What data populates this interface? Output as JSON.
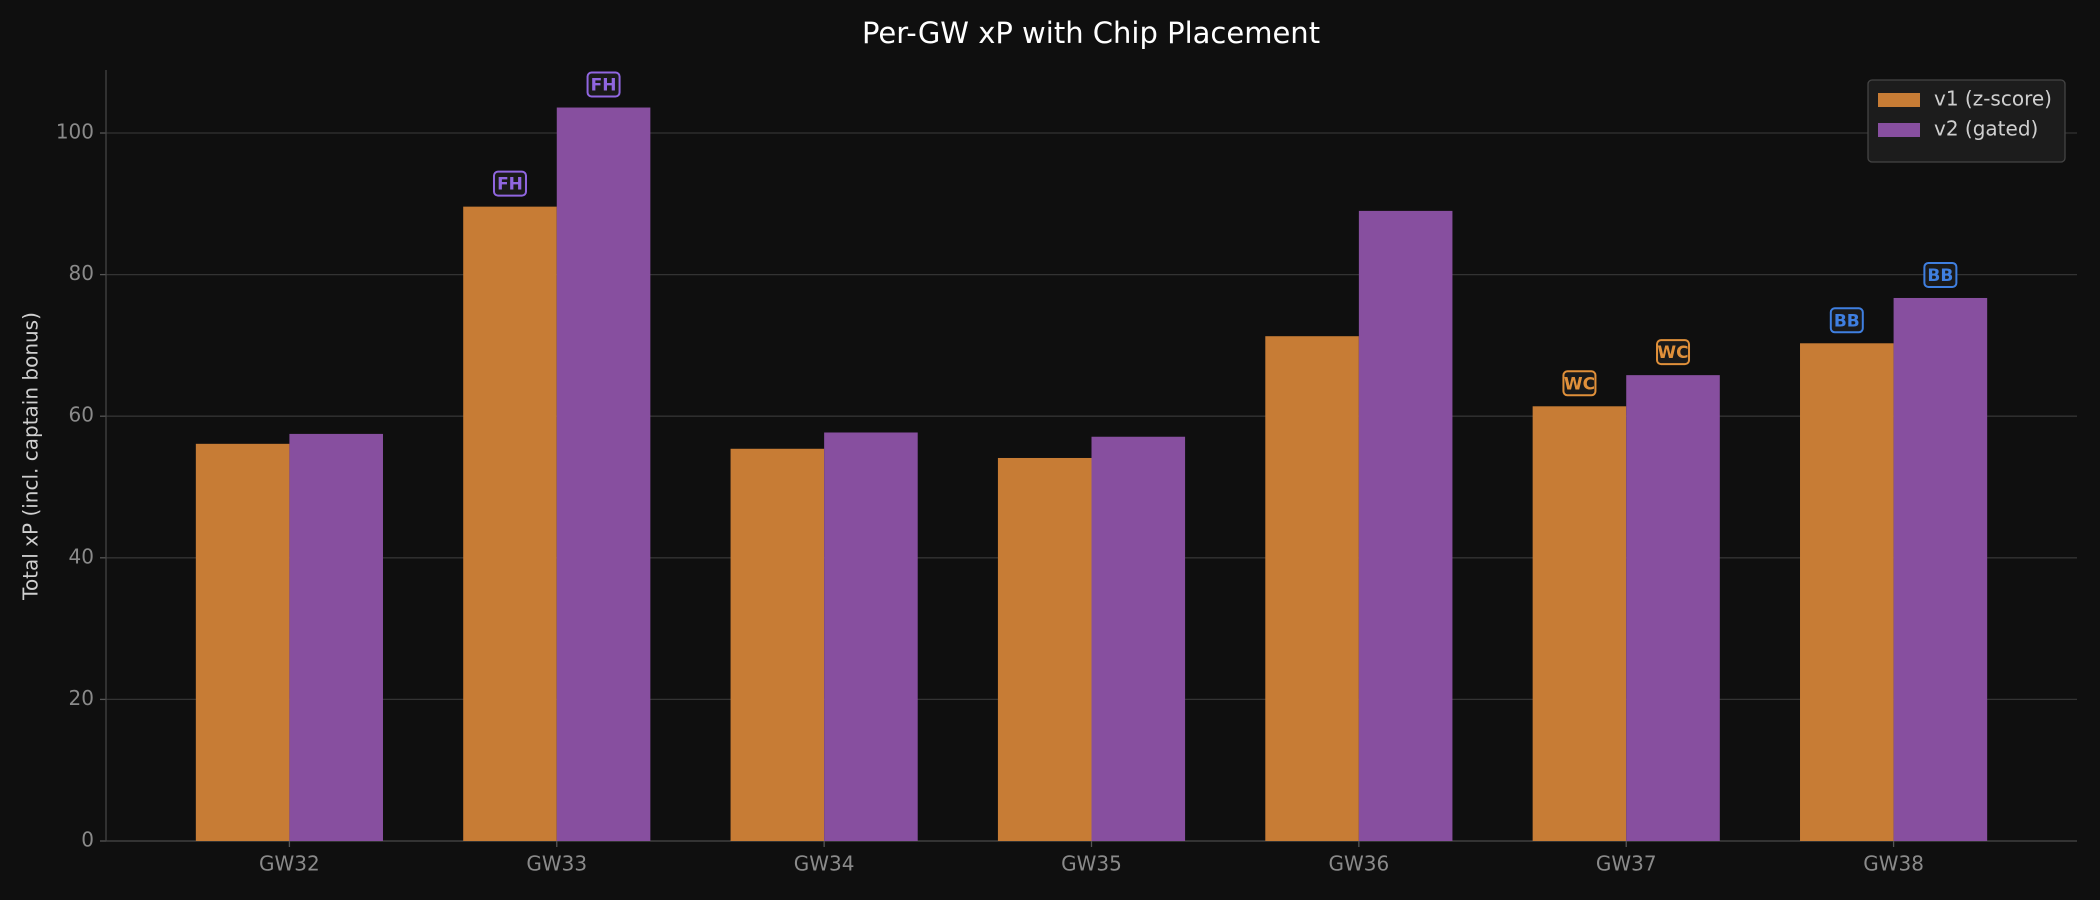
{
  "chart_data": {
    "type": "bar",
    "title": "Per-GW xP with Chip Placement",
    "y_label": "Total xP (incl. captain bonus)",
    "categories": [
      "GW32",
      "GW33",
      "GW34",
      "GW35",
      "GW36",
      "GW37",
      "GW38"
    ],
    "series": [
      {
        "name": "v1 (z-score)",
        "color": "#c77c35",
        "values": [
          56.1,
          89.6,
          55.4,
          54.1,
          71.3,
          61.4,
          70.3
        ],
        "chips": [
          null,
          "FH",
          null,
          null,
          null,
          "WC",
          "BB"
        ]
      },
      {
        "name": "v2 (gated)",
        "color": "#874f9f",
        "values": [
          57.5,
          103.6,
          57.7,
          57.1,
          89.0,
          65.8,
          76.7
        ],
        "chips": [
          null,
          "FH",
          null,
          null,
          null,
          "WC",
          "BB"
        ]
      }
    ],
    "chip_colors": {
      "FH": "#9066e0",
      "WC": "#e0903a",
      "BB": "#3f7fe0"
    },
    "ylim": [
      0,
      108.9
    ],
    "yticks": [
      0,
      20,
      40,
      60,
      80,
      100
    ],
    "grid": true,
    "legend": "upper-right"
  }
}
